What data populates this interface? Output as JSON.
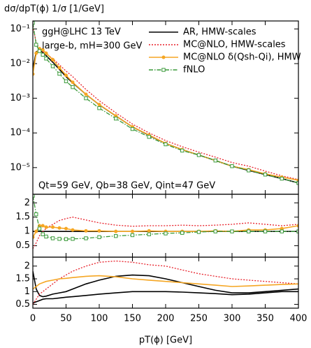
{
  "chart_data": [
    {
      "type": "line",
      "title": "dσ/dpT(ϕ) 1/σ  [1/GeV]",
      "annotations": [
        "ggH@LHC 13 TeV",
        "large-b, mH=300 GeV",
        "Qt=59 GeV, Qb=38 GeV, Qint=47 GeV"
      ],
      "log_y": true,
      "xlim": [
        0,
        400
      ],
      "xticks": [
        0,
        50,
        100,
        150,
        200,
        250,
        300,
        350,
        400
      ],
      "ylim": [
        1.7e-06,
        0.17
      ],
      "yticks": [
        {
          "value": 0.1,
          "label": "10⁻¹"
        },
        {
          "value": 0.01,
          "label": "10⁻²"
        },
        {
          "value": 0.001,
          "label": "10⁻³"
        },
        {
          "value": 0.0001,
          "label": "10⁻⁴"
        },
        {
          "value": 1e-05,
          "label": "10⁻⁵"
        }
      ],
      "legend": "upper right",
      "x": [
        0,
        5,
        10,
        15,
        20,
        30,
        40,
        50,
        60,
        80,
        100,
        125,
        150,
        175,
        200,
        225,
        250,
        275,
        300,
        325,
        350,
        375,
        400
      ],
      "series": [
        {
          "name": "AR, HMW-scales",
          "color": "#000000",
          "style": "solid",
          "values": [
            0.007,
            0.022,
            0.024,
            0.021,
            0.017,
            0.011,
            0.0068,
            0.0042,
            0.0028,
            0.0013,
            0.00065,
            0.00031,
            0.00015,
            8.5e-05,
            5e-05,
            3.3e-05,
            2.3e-05,
            1.6e-05,
            1.1e-05,
            8.3e-06,
            6.3e-06,
            4.8e-06,
            3.6e-06
          ]
        },
        {
          "name": "MC@NLO, HMW-scales",
          "color": "#e8202a",
          "style": "dotted",
          "values": [
            0.12,
            0.04,
            0.027,
            0.022,
            0.019,
            0.014,
            0.0092,
            0.0061,
            0.0042,
            0.0018,
            0.00085,
            0.00038,
            0.00018,
            0.0001,
            6e-05,
            4e-05,
            2.8e-05,
            2e-05,
            1.4e-05,
            1.1e-05,
            7.9e-06,
            5.8e-06,
            4.5e-06
          ]
        },
        {
          "name": "MC@NLO δ(Qsh-Qi), HMW",
          "color": "#f5a623",
          "style": "solid",
          "marker": "circle",
          "values": [
            0.005,
            0.02,
            0.027,
            0.025,
            0.02,
            0.013,
            0.0076,
            0.0046,
            0.0029,
            0.0013,
            0.00066,
            0.00031,
            0.00015,
            8.7e-05,
            5e-05,
            3.3e-05,
            2.3e-05,
            1.6e-05,
            1.1e-05,
            8.7e-06,
            6.6e-06,
            5.3e-06,
            4.3e-06
          ]
        },
        {
          "name": "fNLO",
          "color": "#3a9a3a",
          "style": "dashdot",
          "marker": "square",
          "values": [
            0.15,
            0.035,
            0.023,
            0.018,
            0.014,
            0.0084,
            0.0051,
            0.0031,
            0.0021,
            0.001,
            0.00052,
            0.00026,
            0.00013,
            7.7e-05,
            4.7e-05,
            3.1e-05,
            2.3e-05,
            1.6e-05,
            1.1e-05,
            8.3e-06,
            6.3e-06,
            4.8e-06,
            3.6e-06
          ]
        }
      ]
    },
    {
      "type": "line",
      "log_y": false,
      "xlim": [
        0,
        400
      ],
      "xticks": [
        0,
        50,
        100,
        150,
        200,
        250,
        300,
        350,
        400
      ],
      "ylim": [
        0.1,
        2.3
      ],
      "yticks": [
        0.5,
        1,
        1.5,
        2
      ],
      "x": [
        0,
        5,
        10,
        15,
        20,
        30,
        40,
        50,
        60,
        80,
        100,
        125,
        150,
        175,
        200,
        225,
        250,
        275,
        300,
        325,
        350,
        375,
        400
      ],
      "series": [
        {
          "color": "#000000",
          "style": "solid",
          "values": [
            1,
            1,
            1,
            1,
            1,
            1,
            1,
            1,
            1,
            1,
            1,
            1,
            1,
            1,
            1,
            1,
            1,
            1,
            1,
            1,
            1,
            1,
            1
          ]
        },
        {
          "color": "#e8202a",
          "style": "dotted",
          "values": [
            0.4,
            0.6,
            0.85,
            1.0,
            1.1,
            1.25,
            1.38,
            1.45,
            1.5,
            1.4,
            1.3,
            1.22,
            1.18,
            1.2,
            1.2,
            1.22,
            1.2,
            1.22,
            1.25,
            1.3,
            1.25,
            1.2,
            1.25
          ]
        },
        {
          "color": "#f5a623",
          "style": "solid",
          "marker": "circle",
          "values": [
            0.8,
            1.0,
            1.2,
            1.2,
            1.15,
            1.15,
            1.12,
            1.1,
            1.05,
            1.02,
            1.02,
            1.0,
            1.0,
            1.02,
            1.0,
            1.0,
            1.0,
            1.02,
            1.0,
            1.05,
            1.05,
            1.1,
            1.2
          ]
        },
        {
          "color": "#3a9a3a",
          "style": "dashdot",
          "marker": "square",
          "values": [
            2.25,
            1.6,
            1.1,
            0.9,
            0.82,
            0.76,
            0.74,
            0.73,
            0.74,
            0.76,
            0.8,
            0.84,
            0.87,
            0.9,
            0.93,
            0.95,
            0.98,
            1.0,
            1.0,
            1.0,
            1.0,
            1.0,
            1.0
          ]
        }
      ]
    },
    {
      "type": "line",
      "log_y": false,
      "xlim": [
        0,
        400
      ],
      "xticks": [
        0,
        50,
        100,
        150,
        200,
        250,
        300,
        350,
        400
      ],
      "xlabel": "pT(ϕ) [GeV]",
      "ylim": [
        0.35,
        2.35
      ],
      "yticks": [
        0.5,
        1,
        1.5,
        2
      ],
      "x": [
        0,
        5,
        10,
        15,
        20,
        30,
        40,
        50,
        60,
        80,
        100,
        125,
        150,
        175,
        200,
        225,
        250,
        275,
        300,
        325,
        350,
        375,
        400
      ],
      "series": [
        {
          "color": "#000000",
          "style": "solid",
          "values": [
            1.8,
            1.1,
            0.85,
            0.8,
            0.82,
            0.9,
            0.95,
            1.0,
            1.1,
            1.3,
            1.45,
            1.6,
            1.65,
            1.62,
            1.5,
            1.35,
            1.2,
            1.05,
            0.95,
            0.95,
            1.0,
            1.05,
            1.1
          ]
        },
        {
          "color": "#000000",
          "style": "solid",
          "values": [
            0.55,
            0.6,
            0.65,
            0.7,
            0.72,
            0.72,
            0.75,
            0.78,
            0.8,
            0.85,
            0.9,
            0.95,
            1.0,
            1.0,
            1.0,
            0.98,
            0.95,
            0.92,
            0.88,
            0.9,
            0.95,
            1.0,
            1.0
          ]
        },
        {
          "color": "#e8202a",
          "style": "dotted",
          "values": [
            0.5,
            0.7,
            0.9,
            1.0,
            1.1,
            1.3,
            1.5,
            1.65,
            1.8,
            2.0,
            2.15,
            2.2,
            2.15,
            2.05,
            2.0,
            1.85,
            1.7,
            1.6,
            1.5,
            1.45,
            1.4,
            1.35,
            1.3
          ]
        },
        {
          "color": "#f5a623",
          "style": "solid",
          "values": [
            1.1,
            1.2,
            1.3,
            1.35,
            1.4,
            1.45,
            1.5,
            1.52,
            1.55,
            1.6,
            1.62,
            1.58,
            1.5,
            1.45,
            1.4,
            1.35,
            1.3,
            1.25,
            1.2,
            1.22,
            1.25,
            1.28,
            1.3
          ]
        }
      ]
    }
  ]
}
